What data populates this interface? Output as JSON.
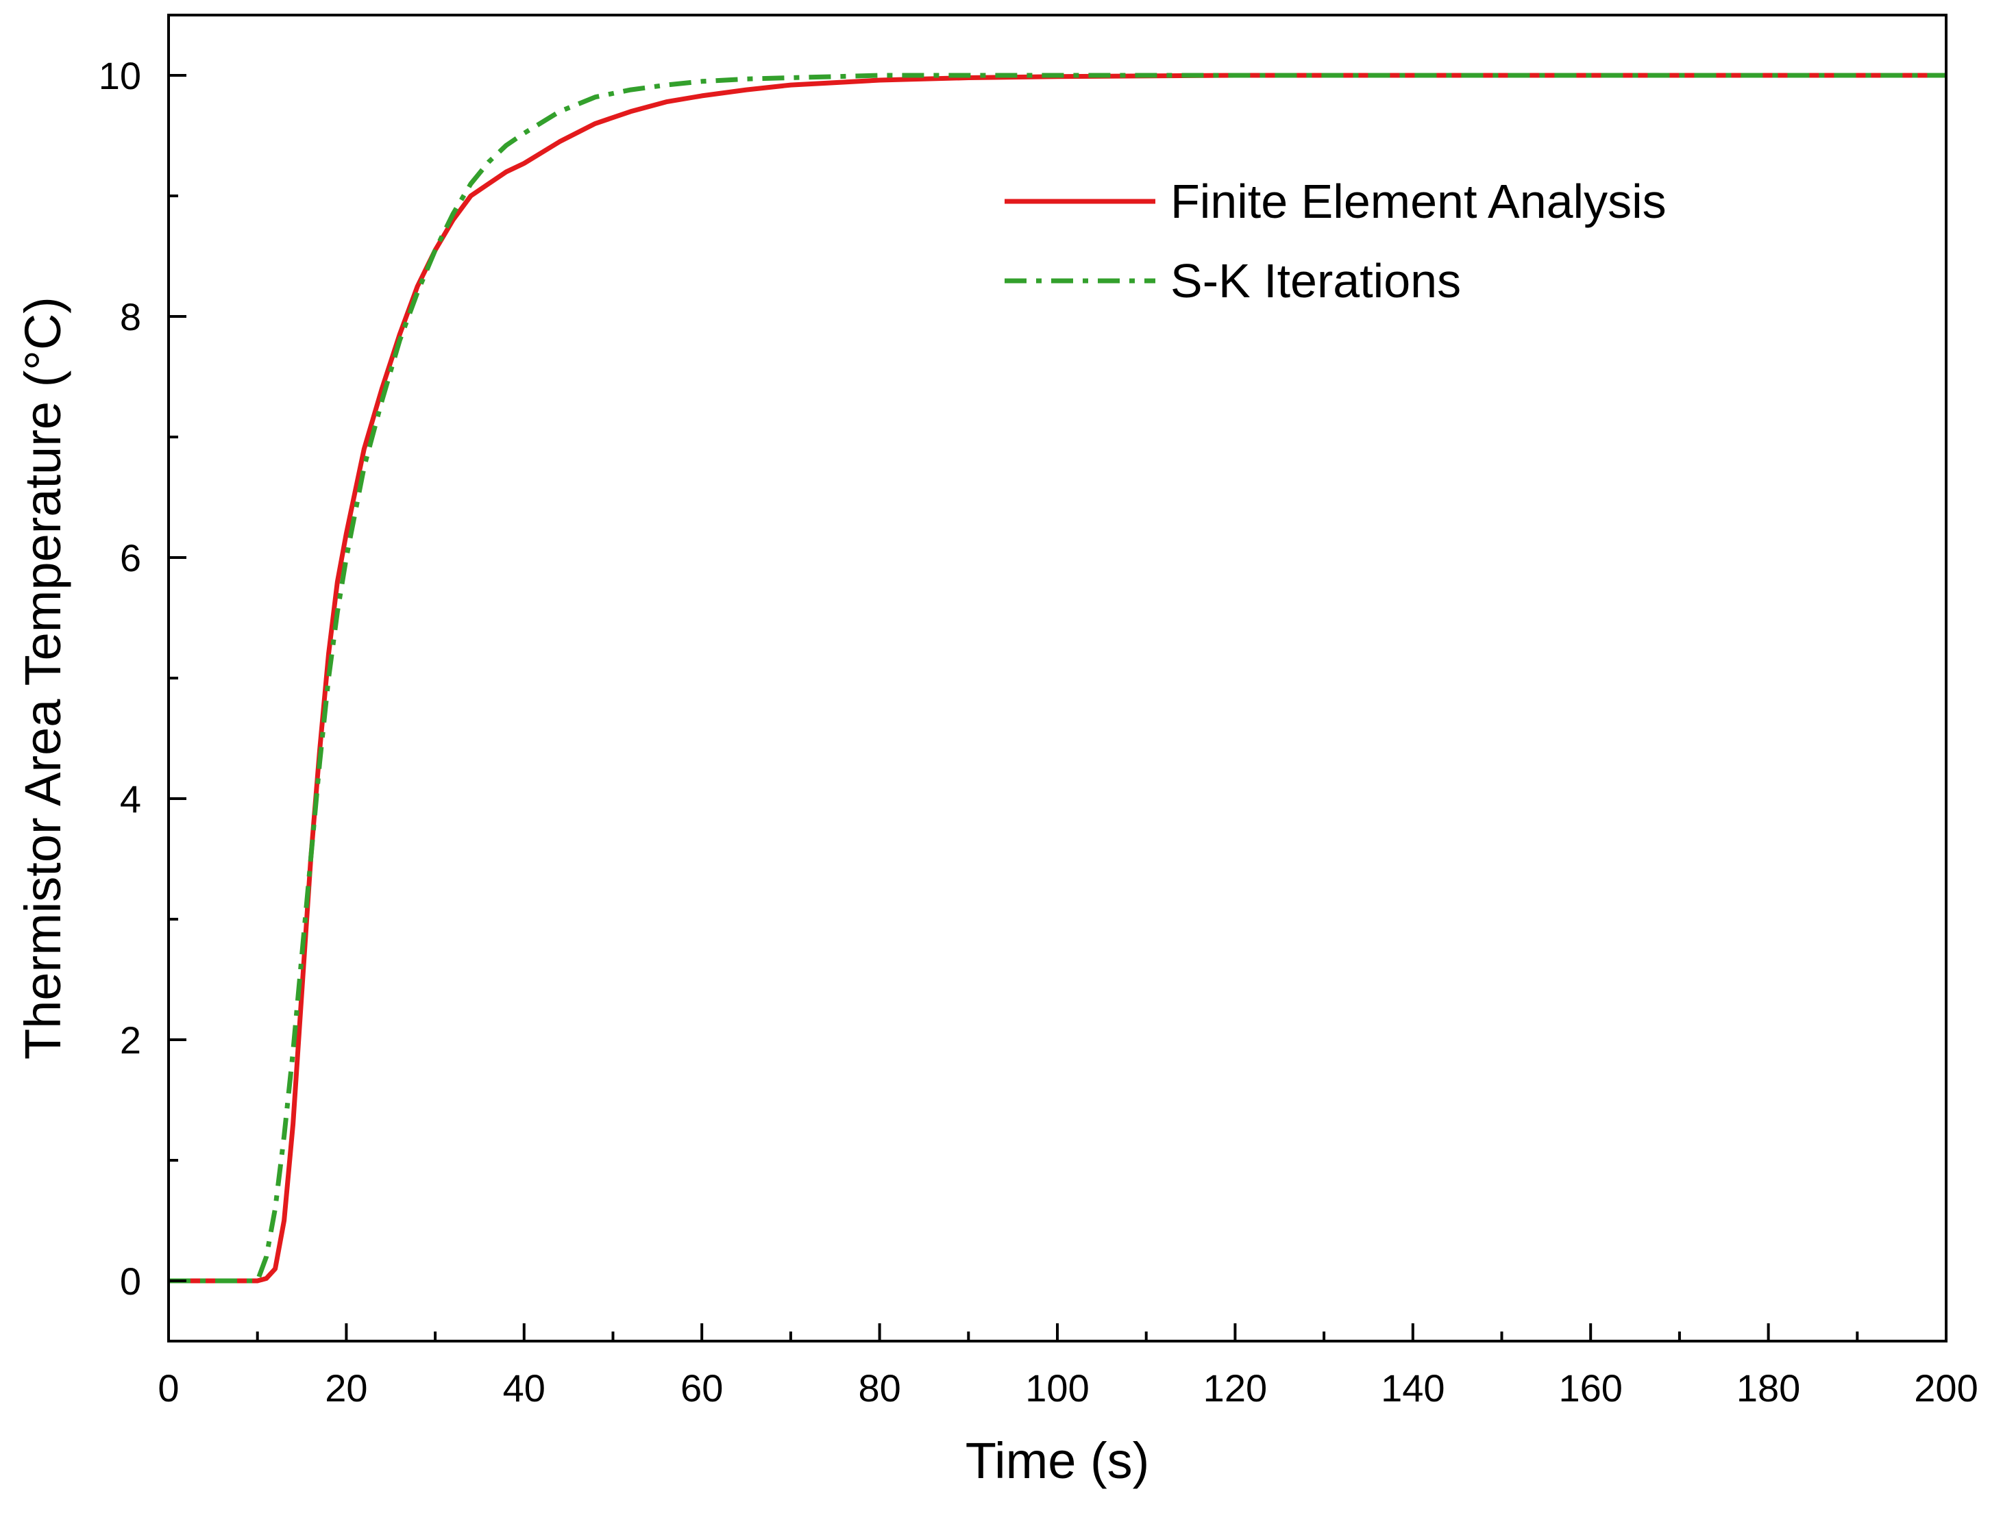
{
  "chart_data": {
    "type": "line",
    "title": "",
    "xlabel": "Time (s)",
    "ylabel": "Thermistor Area Temperature (°C)",
    "xlim": [
      0,
      200
    ],
    "ylim": [
      -0.5,
      10.5
    ],
    "x_major_ticks": [
      0,
      20,
      40,
      60,
      80,
      100,
      120,
      140,
      160,
      180,
      200
    ],
    "x_tick_labels": [
      "0",
      "20",
      "40",
      "60",
      "80",
      "100",
      "120",
      "140",
      "160",
      "180",
      "200"
    ],
    "x_minor_ticks": [
      10,
      30,
      50,
      70,
      90,
      110,
      130,
      150,
      170,
      190
    ],
    "y_major_ticks": [
      0,
      2,
      4,
      6,
      8,
      10
    ],
    "y_tick_labels": [
      "0",
      "2",
      "4",
      "6",
      "8",
      "10"
    ],
    "y_minor_ticks": [
      1,
      3,
      5,
      7,
      9
    ],
    "grid": false,
    "legend_position": "top-right",
    "series": [
      {
        "name": "Finite Element Analysis",
        "color": "#e31a1c",
        "style": "solid",
        "x": [
          0,
          10,
          11,
          12,
          13,
          14,
          15,
          16,
          17,
          18,
          19,
          20,
          22,
          24,
          26,
          28,
          30,
          32,
          34,
          36,
          38,
          40,
          44,
          48,
          52,
          56,
          60,
          65,
          70,
          75,
          80,
          90,
          100,
          120,
          140,
          160,
          180,
          200
        ],
        "y": [
          0,
          0,
          0.02,
          0.1,
          0.5,
          1.3,
          2.4,
          3.5,
          4.4,
          5.2,
          5.8,
          6.2,
          6.9,
          7.4,
          7.85,
          8.25,
          8.55,
          8.8,
          9.0,
          9.1,
          9.2,
          9.27,
          9.45,
          9.6,
          9.7,
          9.78,
          9.83,
          9.88,
          9.92,
          9.94,
          9.96,
          9.98,
          9.99,
          10.0,
          10.0,
          10.0,
          10.0,
          10.0
        ]
      },
      {
        "name": "S-K Iterations",
        "color": "#33a02c",
        "style": "dash-dot",
        "x": [
          0,
          10,
          11,
          12,
          13,
          14,
          15,
          16,
          17,
          18,
          19,
          20,
          22,
          24,
          26,
          28,
          30,
          32,
          34,
          36,
          38,
          40,
          44,
          48,
          52,
          56,
          60,
          65,
          70,
          75,
          80,
          90,
          100,
          120,
          140,
          160,
          180,
          200
        ],
        "y": [
          0,
          0,
          0.2,
          0.6,
          1.2,
          1.9,
          2.7,
          3.5,
          4.3,
          5.0,
          5.55,
          6.0,
          6.75,
          7.3,
          7.8,
          8.2,
          8.55,
          8.85,
          9.1,
          9.28,
          9.42,
          9.52,
          9.7,
          9.82,
          9.88,
          9.92,
          9.95,
          9.97,
          9.98,
          9.99,
          10.0,
          10.0,
          10.0,
          10.0,
          10.0,
          10.0,
          10.0,
          10.0
        ]
      }
    ]
  }
}
